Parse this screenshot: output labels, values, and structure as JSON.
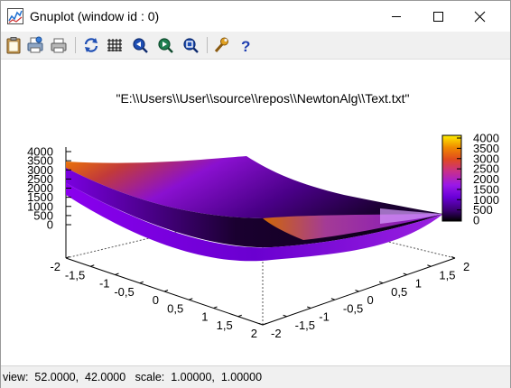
{
  "window": {
    "title": "Gnuplot (window id : 0)",
    "icon": "gnuplot-app-icon",
    "controls": [
      "minimize-icon",
      "maximize-icon",
      "close-icon"
    ]
  },
  "toolbar": {
    "buttons": [
      {
        "name": "copy-to-clipboard",
        "icon": "clipboard-icon"
      },
      {
        "name": "print",
        "icon": "printer-icon"
      },
      {
        "name": "export",
        "icon": "export-printer-icon"
      },
      {
        "name": "replot",
        "icon": "refresh-icon"
      },
      {
        "name": "toggle-grid",
        "icon": "grid-icon"
      },
      {
        "name": "zoom-previous",
        "icon": "zoom-previous-icon"
      },
      {
        "name": "zoom-next",
        "icon": "zoom-next-icon"
      },
      {
        "name": "unzoom",
        "icon": "unzoom-icon"
      },
      {
        "name": "options",
        "icon": "wrench-icon"
      },
      {
        "name": "help",
        "icon": "help-icon"
      }
    ]
  },
  "plot": {
    "title": "\"E:\\\\Users\\\\User\\\\source\\\\repos\\\\NewtonAlg\\\\Text.txt\""
  },
  "chart_data": {
    "type": "surface3d",
    "x_ticks": [
      "-2",
      "-1,5",
      "-1",
      "-0,5",
      "0",
      "0,5",
      "1",
      "1,5",
      "2"
    ],
    "y_ticks": [
      "-2",
      "-1,5",
      "-1",
      "-0,5",
      "0",
      "0,5",
      "1",
      "1,5",
      "2"
    ],
    "z_ticks": [
      "0",
      "500",
      "1000",
      "1500",
      "2000",
      "2500",
      "3000",
      "3500",
      "4000"
    ],
    "colorbox_ticks": [
      "0",
      "500",
      "1000",
      "1500",
      "2000",
      "2500",
      "3000",
      "3500",
      "4000"
    ],
    "xlim": [
      -2,
      2
    ],
    "ylim": [
      -2,
      2
    ],
    "zlim": [
      0,
      4000
    ],
    "colorbar_range": [
      0,
      4000
    ],
    "palette": "black-blue-purple-red-orange-yellow",
    "legend_position": "right"
  },
  "status": {
    "text": "view:  52.0000,  42.0000   scale:  1.00000,  1.00000"
  }
}
